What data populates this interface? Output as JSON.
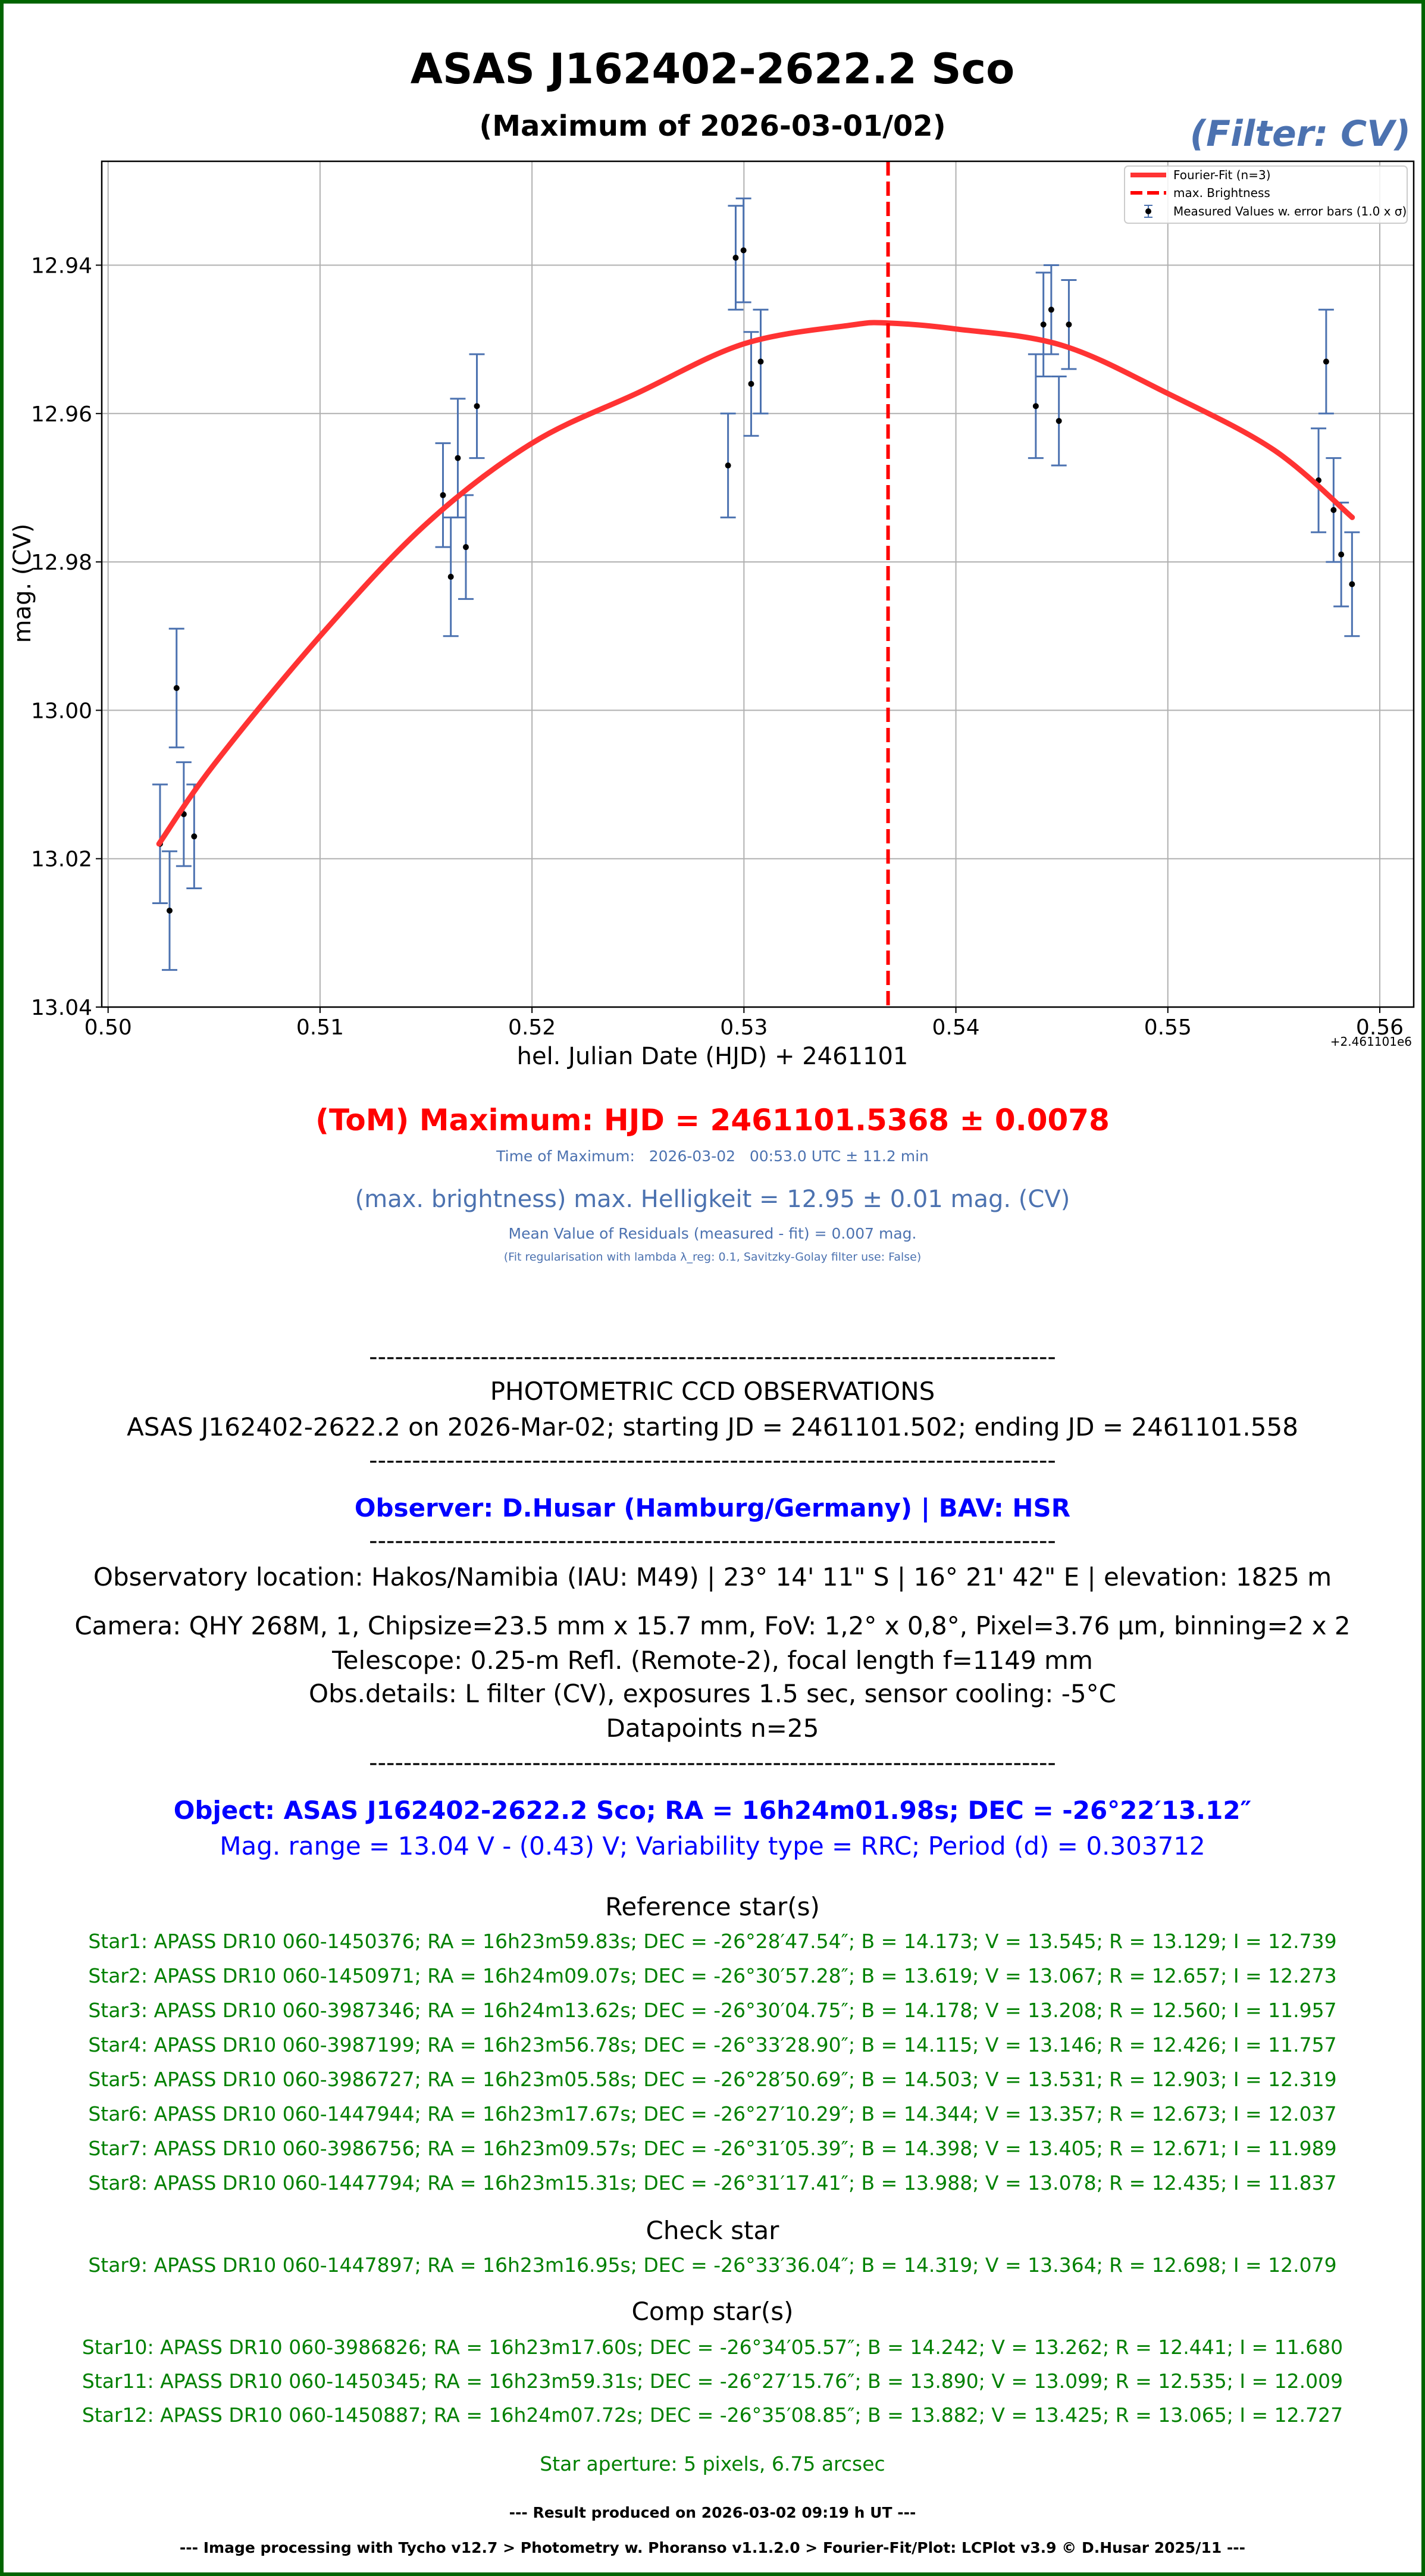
{
  "header": {
    "title": "ASAS J162402-2622.2 Sco",
    "subtitle": "(Maximum of 2026-03-01/02)",
    "filter": "(Filter: CV)"
  },
  "colors": {
    "border": "#006400",
    "fit": "#ff3333",
    "max_line": "#ff0000",
    "errorbar": "#4c72b0",
    "points": "#000000",
    "info_blue": "#4c72b0",
    "observer_blue": "#0000ff",
    "star_green": "#008000",
    "tom_red": "#ff0000"
  },
  "chart_data": {
    "type": "scatter",
    "xlabel": "hel. Julian Date (HJD) + 2461101",
    "ylabel": "mag. (CV)",
    "x_offset_label": "+2.461101e6",
    "xlim": [
      0.4997,
      0.5616
    ],
    "ylim": [
      13.04,
      12.926
    ],
    "y_inverted": true,
    "grid": true,
    "xticks": [
      "0.50",
      "0.51",
      "0.52",
      "0.53",
      "0.54",
      "0.55",
      "0.56"
    ],
    "yticks": [
      "12.94",
      "12.96",
      "12.98",
      "13.00",
      "13.02",
      "13.04"
    ],
    "legend": {
      "placement": "top-right",
      "entries": [
        "Fourier-Fit (n=3)",
        "max. Brightness",
        "Measured Values w. error bars (1.0 x σ)"
      ]
    },
    "max_brightness_x": 0.5368,
    "fit_curve": [
      [
        0.5024,
        13.018
      ],
      [
        0.505,
        13.0073
      ],
      [
        0.51,
        12.99
      ],
      [
        0.515,
        12.9749
      ],
      [
        0.52,
        12.964
      ],
      [
        0.525,
        12.9572
      ],
      [
        0.53,
        12.9506
      ],
      [
        0.535,
        12.9481
      ],
      [
        0.5368,
        12.9478
      ],
      [
        0.54,
        12.9486
      ],
      [
        0.545,
        12.9508
      ],
      [
        0.55,
        12.9573
      ],
      [
        0.555,
        12.9649
      ],
      [
        0.5587,
        12.974
      ]
    ],
    "points": [
      [
        0.50245,
        13.018,
        0.008
      ],
      [
        0.5029,
        13.027,
        0.008
      ],
      [
        0.50323,
        12.997,
        0.008
      ],
      [
        0.50357,
        13.014,
        0.007
      ],
      [
        0.50406,
        13.017,
        0.007
      ],
      [
        0.5158,
        12.971,
        0.007
      ],
      [
        0.51617,
        12.982,
        0.008
      ],
      [
        0.5165,
        12.966,
        0.008
      ],
      [
        0.51688,
        12.978,
        0.007
      ],
      [
        0.5174,
        12.959,
        0.007
      ],
      [
        0.52925,
        12.967,
        0.007
      ],
      [
        0.52961,
        12.939,
        0.007
      ],
      [
        0.52998,
        12.938,
        0.007
      ],
      [
        0.53034,
        12.956,
        0.007
      ],
      [
        0.53079,
        12.953,
        0.007
      ],
      [
        0.54377,
        12.959,
        0.007
      ],
      [
        0.54413,
        12.948,
        0.007
      ],
      [
        0.5445,
        12.946,
        0.006
      ],
      [
        0.54486,
        12.961,
        0.006
      ],
      [
        0.54533,
        12.948,
        0.006
      ],
      [
        0.55711,
        12.969,
        0.007
      ],
      [
        0.55747,
        12.953,
        0.007
      ],
      [
        0.55782,
        12.973,
        0.007
      ],
      [
        0.55818,
        12.979,
        0.007
      ],
      [
        0.55869,
        12.983,
        0.007
      ]
    ]
  },
  "results": {
    "tom": "(ToM) Maximum: HJD = 2461101.5368 ± 0.0078",
    "time_of_max": "Time of Maximum:   2026-03-02   00:53.0 UTC ± 11.2 min",
    "max_brightness": "(max. brightness) max. Helligkeit = 12.95 ± 0.01 mag. (CV)",
    "residuals": "Mean Value of Residuals (measured - fit) = 0.007 mag.",
    "regularisation": "(Fit regularisation with lambda λ_reg: 0.1, Savitzky-Golay filter use: False)"
  },
  "report": {
    "separator": "--------------------------------------------------------------------------------",
    "heading": "PHOTOMETRIC CCD OBSERVATIONS",
    "run": "ASAS J162402-2622.2 on 2026-Mar-02; starting JD = 2461101.502; ending JD = 2461101.558",
    "observer": "Observer: D.Husar (Hamburg/Germany) | BAV: HSR",
    "location": "Observatory location: Hakos/Namibia (IAU: M49) | 23° 14' 11\" S | 16° 21' 42\" E | elevation: 1825 m",
    "camera": "Camera: QHY 268M, 1, Chipsize=23.5 mm x 15.7 mm, FoV: 1,2° x 0,8°, Pixel=3.76 µm, binning=2 x 2",
    "telescope": "Telescope: 0.25-m Refl. (Remote-2), focal length f=1149 mm",
    "obs_details": "Obs.details: L filter (CV), exposures 1.5 sec, sensor cooling: -5°C",
    "datapoints": "Datapoints n=25",
    "object": "Object: ASAS J162402-2622.2 Sco; RA = 16h24m01.98s; DEC = -26°22′13.12″",
    "mag_range": "Mag. range = 13.04 V - (0.43) V; Variability type = RRC; Period (d) = 0.303712",
    "ref_heading": "Reference star(s)",
    "ref_stars": [
      "Star1: APASS DR10 060-1450376; RA = 16h23m59.83s; DEC = -26°28′47.54″; B = 14.173; V = 13.545; R = 13.129; I = 12.739",
      "Star2: APASS DR10 060-1450971; RA = 16h24m09.07s; DEC = -26°30′57.28″; B = 13.619; V = 13.067; R = 12.657; I = 12.273",
      "Star3: APASS DR10 060-3987346; RA = 16h24m13.62s; DEC = -26°30′04.75″; B = 14.178; V = 13.208; R = 12.560; I = 11.957",
      "Star4: APASS DR10 060-3987199; RA = 16h23m56.78s; DEC = -26°33′28.90″; B = 14.115; V = 13.146; R = 12.426; I = 11.757",
      "Star5: APASS DR10 060-3986727; RA = 16h23m05.58s; DEC = -26°28′50.69″; B = 14.503; V = 13.531; R = 12.903; I = 12.319",
      "Star6: APASS DR10 060-1447944; RA = 16h23m17.67s; DEC = -26°27′10.29″; B = 14.344; V = 13.357; R = 12.673; I = 12.037",
      "Star7: APASS DR10 060-3986756; RA = 16h23m09.57s; DEC = -26°31′05.39″; B = 14.398; V = 13.405; R = 12.671; I = 11.989",
      "Star8: APASS DR10 060-1447794; RA = 16h23m15.31s; DEC = -26°31′17.41″; B = 13.988; V = 13.078; R = 12.435; I = 11.837"
    ],
    "check_heading": "Check star",
    "check_star": "Star9: APASS DR10 060-1447897; RA = 16h23m16.95s; DEC = -26°33′36.04″; B = 14.319; V = 13.364; R = 12.698; I = 12.079",
    "comp_heading": "Comp star(s)",
    "comp_stars": [
      "Star10: APASS DR10 060-3986826; RA = 16h23m17.60s; DEC = -26°34′05.57″; B = 14.242; V = 13.262; R = 12.441; I = 11.680",
      "Star11: APASS DR10 060-1450345; RA = 16h23m59.31s; DEC = -26°27′15.76″; B = 13.890; V = 13.099; R = 12.535; I = 12.009",
      "Star12: APASS DR10 060-1450887; RA = 16h24m07.72s; DEC = -26°35′08.85″; B = 13.882; V = 13.425; R = 13.065; I = 12.727"
    ],
    "aperture": "Star aperture: 5 pixels, 6.75 arcsec",
    "produced": "--- Result produced on 2026-03-02 09:19 h UT ---",
    "pipeline": "--- Image processing with Tycho v12.7 > Photometry w. Phoranso v1.1.2.0 > Fourier-Fit/Plot: LCPlot v3.9 © D.Husar 2025/11 ---"
  }
}
